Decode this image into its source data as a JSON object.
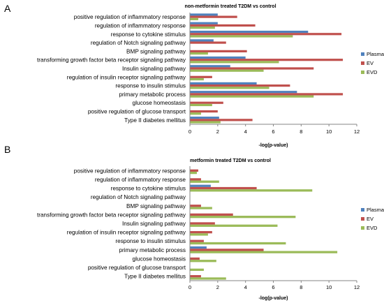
{
  "panel_letters": [
    "A",
    "B"
  ],
  "chart_data": [
    {
      "type": "bar",
      "orientation": "horizontal",
      "title": "non-metformin treated T2DM vs control",
      "xlabel": "-log(p-value)",
      "ylabel": "",
      "xlim": [
        0,
        12
      ],
      "xticks": [
        0,
        2,
        4,
        6,
        8,
        10,
        12
      ],
      "grid": false,
      "legend_position": "right",
      "categories": [
        "positive regulation of inflammatory response",
        "regulation of inflammatory response",
        "response to cytokine stimulus",
        "regulation of Notch signaling pathway",
        "BMP signaling pathway",
        "transforming growth factor beta receptor signaling pathway",
        "Insulin signaling pathway",
        "regulation of insulin receptor signaling pathway",
        "response to insulin stimulus",
        "primary metabolic process",
        "glucose homeostasis",
        "positive regulation of glucose transport",
        "Type II diabetes mellitus"
      ],
      "series": [
        {
          "name": "Plasma",
          "color": "#4f81bd",
          "values": [
            2.0,
            2.0,
            8.5,
            1.7,
            0,
            4.0,
            2.9,
            0,
            4.8,
            7.7,
            0,
            0,
            2.1
          ]
        },
        {
          "name": "EV",
          "color": "#c0504d",
          "values": [
            3.4,
            4.7,
            10.9,
            2.6,
            4.1,
            11.0,
            8.9,
            1.6,
            7.2,
            11.0,
            2.4,
            2.0,
            4.5
          ]
        },
        {
          "name": "EVD",
          "color": "#9bbb59",
          "values": [
            0.6,
            1.8,
            7.4,
            0,
            1.3,
            6.4,
            5.3,
            1.0,
            5.7,
            8.9,
            1.6,
            0.8,
            2.2
          ]
        }
      ]
    },
    {
      "type": "bar",
      "orientation": "horizontal",
      "title": "metformin treated  T2DM vs control",
      "xlabel": "-log(p-value)",
      "ylabel": "",
      "xlim": [
        0,
        12
      ],
      "xticks": [
        0,
        2,
        4,
        6,
        8,
        10,
        12
      ],
      "grid": false,
      "legend_position": "right",
      "categories": [
        "positive regulation of inflammatory response",
        "regulation of inflammatory response",
        "response to cytokine stimulus",
        "regulation of Notch signaling pathway",
        "BMP signaling pathway",
        "transforming growth factor beta receptor signaling pathway",
        "Insulin signaling pathway",
        "regulation of insulin receptor signaling pathway",
        "response to insulin stimulus",
        "primary metabolic process",
        "glucose homeostasis",
        "positive regulation of glucose transport",
        "Type II diabetes mellitus"
      ],
      "series": [
        {
          "name": "Plasma",
          "color": "#4f81bd",
          "values": [
            0,
            0,
            1.5,
            0,
            0,
            0,
            0,
            0,
            0,
            1.2,
            0,
            0,
            0
          ]
        },
        {
          "name": "EV",
          "color": "#c0504d",
          "values": [
            0.6,
            0.8,
            4.8,
            0,
            0.8,
            3.1,
            1.8,
            1.6,
            1.0,
            5.3,
            0.7,
            0,
            0.8
          ]
        },
        {
          "name": "EVD",
          "color": "#9bbb59",
          "values": [
            0.5,
            2.1,
            8.8,
            0,
            1.6,
            7.6,
            6.3,
            1.3,
            6.9,
            10.6,
            1.9,
            1.0,
            2.6
          ]
        }
      ]
    }
  ]
}
